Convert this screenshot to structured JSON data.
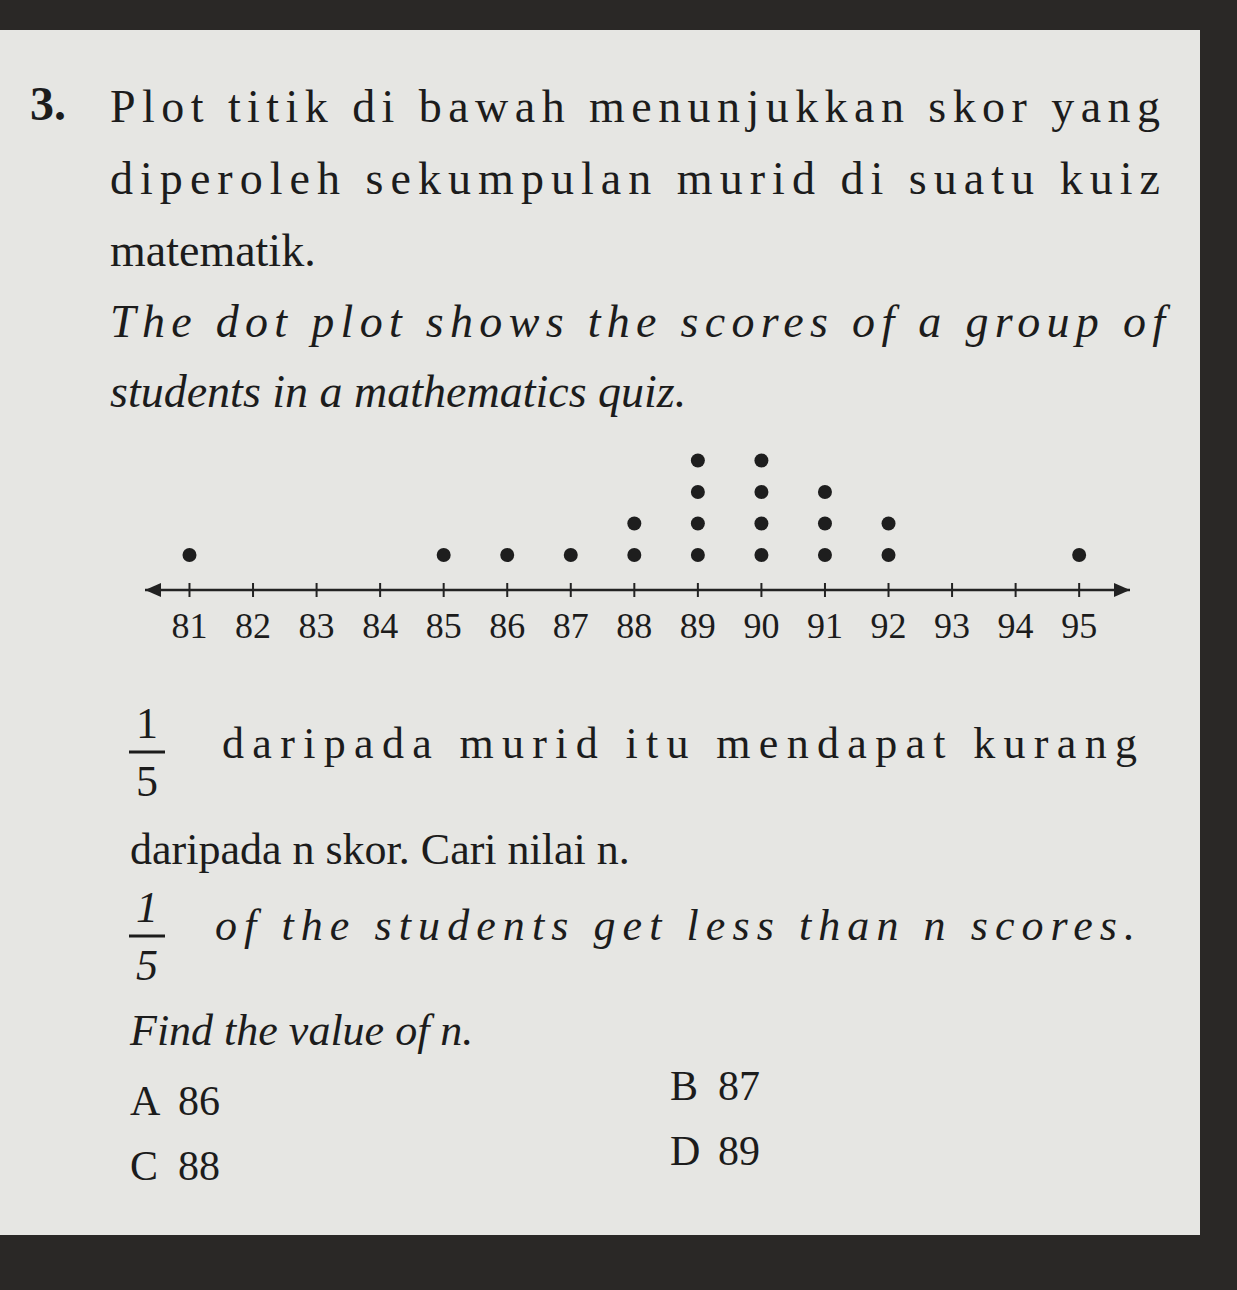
{
  "question": {
    "number": "3.",
    "malay_lines": [
      "Plot titik di bawah menunjukkan skor yang",
      "diperoleh sekumpulan murid di suatu kuiz",
      "matematik."
    ],
    "english_lines": [
      "The dot plot shows the scores of a group of",
      "students in a mathematics quiz."
    ],
    "fraction": {
      "numerator": "1",
      "denominator": "5"
    },
    "malay_prompt": [
      "daripada murid itu mendapat kurang",
      "daripada n skor. Cari nilai n."
    ],
    "english_prompt": [
      "of the students get less than n scores.",
      "Find the value of n."
    ],
    "options": [
      {
        "letter": "A",
        "value": 86
      },
      {
        "letter": "B",
        "value": 87
      },
      {
        "letter": "C",
        "value": 88
      },
      {
        "letter": "D",
        "value": 89
      }
    ]
  },
  "chart_data": {
    "type": "dot",
    "x": [
      81,
      82,
      83,
      84,
      85,
      86,
      87,
      88,
      89,
      90,
      91,
      92,
      93,
      94,
      95
    ],
    "values": [
      1,
      0,
      0,
      0,
      1,
      1,
      1,
      2,
      4,
      4,
      3,
      2,
      0,
      0,
      1
    ],
    "xlim": [
      80.3,
      95.8
    ],
    "xticks": [
      81,
      82,
      83,
      84,
      85,
      86,
      87,
      88,
      89,
      90,
      91,
      92,
      93,
      94,
      95
    ],
    "color": "#1e1e1e"
  }
}
